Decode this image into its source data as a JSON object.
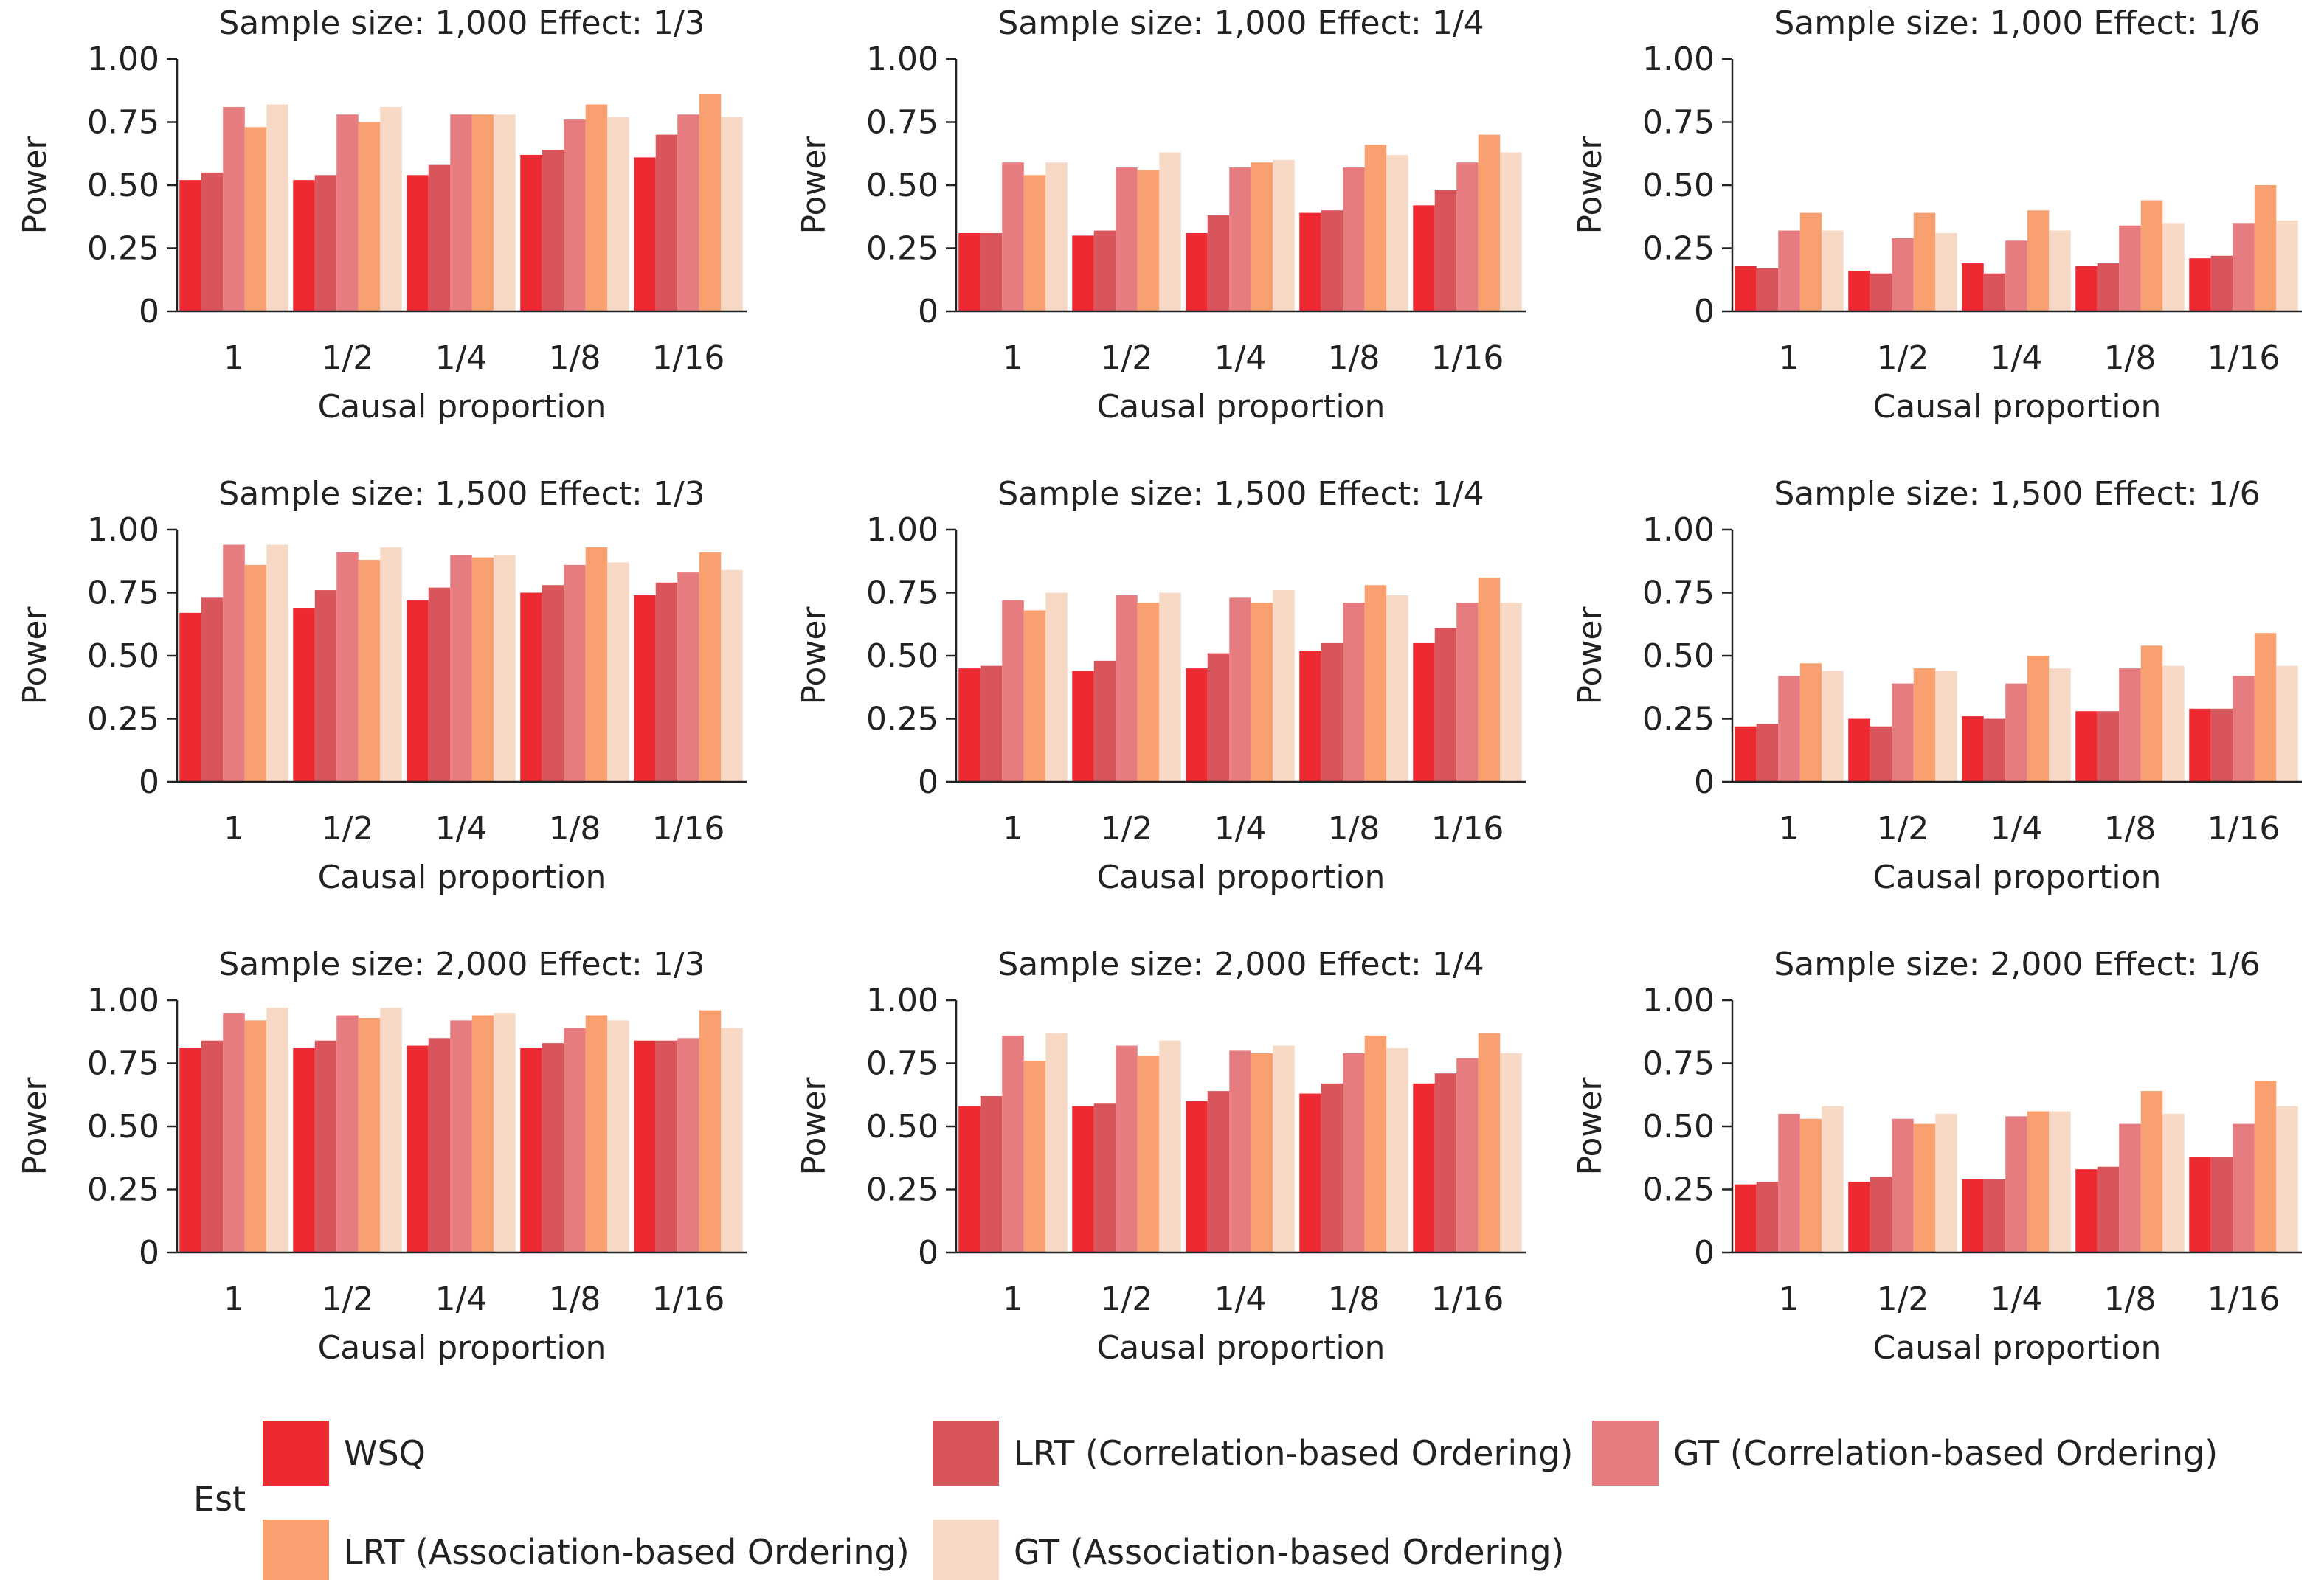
{
  "legend": {
    "title": "Est",
    "entries": [
      {
        "name": "WSQ",
        "color": "#ED2A32"
      },
      {
        "name": "LRT (Correlation-based Ordering)",
        "color": "#D9555C"
      },
      {
        "name": "GT (Correlation-based Ordering)",
        "color": "#E67C7F"
      },
      {
        "name": "LRT (Association-based Ordering)",
        "color": "#F8A06F"
      },
      {
        "name": "GT (Association-based Ordering)",
        "color": "#F8D9C6"
      }
    ]
  },
  "chart_data": [
    {
      "type": "bar",
      "title": "Sample size: 1,000 Effect: 1/3",
      "xlabel": "Causal proportion",
      "ylabel": "Power",
      "categories": [
        "1",
        "1/2",
        "1/4",
        "1/8",
        "1/16"
      ],
      "ylim": [
        0,
        1
      ],
      "yticks": [
        "0",
        "0.25",
        "0.50",
        "0.75",
        "1.00"
      ],
      "series": [
        {
          "name": "WSQ",
          "values": [
            0.52,
            0.52,
            0.54,
            0.62,
            0.61
          ]
        },
        {
          "name": "LRT (Correlation-based Ordering)",
          "values": [
            0.55,
            0.54,
            0.58,
            0.64,
            0.7
          ]
        },
        {
          "name": "GT (Correlation-based Ordering)",
          "values": [
            0.81,
            0.78,
            0.78,
            0.76,
            0.78
          ]
        },
        {
          "name": "LRT (Association-based Ordering)",
          "values": [
            0.73,
            0.75,
            0.78,
            0.82,
            0.86
          ]
        },
        {
          "name": "GT (Association-based Ordering)",
          "values": [
            0.82,
            0.81,
            0.78,
            0.77,
            0.77
          ]
        }
      ]
    },
    {
      "type": "bar",
      "title": "Sample size: 1,000 Effect: 1/4",
      "xlabel": "Causal proportion",
      "ylabel": "Power",
      "categories": [
        "1",
        "1/2",
        "1/4",
        "1/8",
        "1/16"
      ],
      "ylim": [
        0,
        1
      ],
      "yticks": [
        "0",
        "0.25",
        "0.50",
        "0.75",
        "1.00"
      ],
      "series": [
        {
          "name": "WSQ",
          "values": [
            0.31,
            0.3,
            0.31,
            0.39,
            0.42
          ]
        },
        {
          "name": "LRT (Correlation-based Ordering)",
          "values": [
            0.31,
            0.32,
            0.38,
            0.4,
            0.48
          ]
        },
        {
          "name": "GT (Correlation-based Ordering)",
          "values": [
            0.59,
            0.57,
            0.57,
            0.57,
            0.59
          ]
        },
        {
          "name": "LRT (Association-based Ordering)",
          "values": [
            0.54,
            0.56,
            0.59,
            0.66,
            0.7
          ]
        },
        {
          "name": "GT (Association-based Ordering)",
          "values": [
            0.59,
            0.63,
            0.6,
            0.62,
            0.63
          ]
        }
      ]
    },
    {
      "type": "bar",
      "title": "Sample size: 1,000 Effect: 1/6",
      "xlabel": "Causal proportion",
      "ylabel": "Power",
      "categories": [
        "1",
        "1/2",
        "1/4",
        "1/8",
        "1/16"
      ],
      "ylim": [
        0,
        1
      ],
      "yticks": [
        "0",
        "0.25",
        "0.50",
        "0.75",
        "1.00"
      ],
      "series": [
        {
          "name": "WSQ",
          "values": [
            0.18,
            0.16,
            0.19,
            0.18,
            0.21
          ]
        },
        {
          "name": "LRT (Correlation-based Ordering)",
          "values": [
            0.17,
            0.15,
            0.15,
            0.19,
            0.22
          ]
        },
        {
          "name": "GT (Correlation-based Ordering)",
          "values": [
            0.32,
            0.29,
            0.28,
            0.34,
            0.35
          ]
        },
        {
          "name": "LRT (Association-based Ordering)",
          "values": [
            0.39,
            0.39,
            0.4,
            0.44,
            0.5
          ]
        },
        {
          "name": "GT (Association-based Ordering)",
          "values": [
            0.32,
            0.31,
            0.32,
            0.35,
            0.36
          ]
        }
      ]
    },
    {
      "type": "bar",
      "title": "Sample size: 1,500 Effect: 1/3",
      "xlabel": "Causal proportion",
      "ylabel": "Power",
      "categories": [
        "1",
        "1/2",
        "1/4",
        "1/8",
        "1/16"
      ],
      "ylim": [
        0,
        1
      ],
      "yticks": [
        "0",
        "0.25",
        "0.50",
        "0.75",
        "1.00"
      ],
      "series": [
        {
          "name": "WSQ",
          "values": [
            0.67,
            0.69,
            0.72,
            0.75,
            0.74
          ]
        },
        {
          "name": "LRT (Correlation-based Ordering)",
          "values": [
            0.73,
            0.76,
            0.77,
            0.78,
            0.79
          ]
        },
        {
          "name": "GT (Correlation-based Ordering)",
          "values": [
            0.94,
            0.91,
            0.9,
            0.86,
            0.83
          ]
        },
        {
          "name": "LRT (Association-based Ordering)",
          "values": [
            0.86,
            0.88,
            0.89,
            0.93,
            0.91
          ]
        },
        {
          "name": "GT (Association-based Ordering)",
          "values": [
            0.94,
            0.93,
            0.9,
            0.87,
            0.84
          ]
        }
      ]
    },
    {
      "type": "bar",
      "title": "Sample size: 1,500 Effect: 1/4",
      "xlabel": "Causal proportion",
      "ylabel": "Power",
      "categories": [
        "1",
        "1/2",
        "1/4",
        "1/8",
        "1/16"
      ],
      "ylim": [
        0,
        1
      ],
      "yticks": [
        "0",
        "0.25",
        "0.50",
        "0.75",
        "1.00"
      ],
      "series": [
        {
          "name": "WSQ",
          "values": [
            0.45,
            0.44,
            0.45,
            0.52,
            0.55
          ]
        },
        {
          "name": "LRT (Correlation-based Ordering)",
          "values": [
            0.46,
            0.48,
            0.51,
            0.55,
            0.61
          ]
        },
        {
          "name": "GT (Correlation-based Ordering)",
          "values": [
            0.72,
            0.74,
            0.73,
            0.71,
            0.71
          ]
        },
        {
          "name": "LRT (Association-based Ordering)",
          "values": [
            0.68,
            0.71,
            0.71,
            0.78,
            0.81
          ]
        },
        {
          "name": "GT (Association-based Ordering)",
          "values": [
            0.75,
            0.75,
            0.76,
            0.74,
            0.71
          ]
        }
      ]
    },
    {
      "type": "bar",
      "title": "Sample size: 1,500 Effect: 1/6",
      "xlabel": "Causal proportion",
      "ylabel": "Power",
      "categories": [
        "1",
        "1/2",
        "1/4",
        "1/8",
        "1/16"
      ],
      "ylim": [
        0,
        1
      ],
      "yticks": [
        "0",
        "0.25",
        "0.50",
        "0.75",
        "1.00"
      ],
      "series": [
        {
          "name": "WSQ",
          "values": [
            0.22,
            0.25,
            0.26,
            0.28,
            0.29
          ]
        },
        {
          "name": "LRT (Correlation-based Ordering)",
          "values": [
            0.23,
            0.22,
            0.25,
            0.28,
            0.29
          ]
        },
        {
          "name": "GT (Correlation-based Ordering)",
          "values": [
            0.42,
            0.39,
            0.39,
            0.45,
            0.42
          ]
        },
        {
          "name": "LRT (Association-based Ordering)",
          "values": [
            0.47,
            0.45,
            0.5,
            0.54,
            0.59
          ]
        },
        {
          "name": "GT (Association-based Ordering)",
          "values": [
            0.44,
            0.44,
            0.45,
            0.46,
            0.46
          ]
        }
      ]
    },
    {
      "type": "bar",
      "title": "Sample size: 2,000 Effect: 1/3",
      "xlabel": "Causal proportion",
      "ylabel": "Power",
      "categories": [
        "1",
        "1/2",
        "1/4",
        "1/8",
        "1/16"
      ],
      "ylim": [
        0,
        1
      ],
      "yticks": [
        "0",
        "0.25",
        "0.50",
        "0.75",
        "1.00"
      ],
      "series": [
        {
          "name": "WSQ",
          "values": [
            0.81,
            0.81,
            0.82,
            0.81,
            0.84
          ]
        },
        {
          "name": "LRT (Correlation-based Ordering)",
          "values": [
            0.84,
            0.84,
            0.85,
            0.83,
            0.84
          ]
        },
        {
          "name": "GT (Correlation-based Ordering)",
          "values": [
            0.95,
            0.94,
            0.92,
            0.89,
            0.85
          ]
        },
        {
          "name": "LRT (Association-based Ordering)",
          "values": [
            0.92,
            0.93,
            0.94,
            0.94,
            0.96
          ]
        },
        {
          "name": "GT (Association-based Ordering)",
          "values": [
            0.97,
            0.97,
            0.95,
            0.92,
            0.89
          ]
        }
      ]
    },
    {
      "type": "bar",
      "title": "Sample size: 2,000 Effect: 1/4",
      "xlabel": "Causal proportion",
      "ylabel": "Power",
      "categories": [
        "1",
        "1/2",
        "1/4",
        "1/8",
        "1/16"
      ],
      "ylim": [
        0,
        1
      ],
      "yticks": [
        "0",
        "0.25",
        "0.50",
        "0.75",
        "1.00"
      ],
      "series": [
        {
          "name": "WSQ",
          "values": [
            0.58,
            0.58,
            0.6,
            0.63,
            0.67
          ]
        },
        {
          "name": "LRT (Correlation-based Ordering)",
          "values": [
            0.62,
            0.59,
            0.64,
            0.67,
            0.71
          ]
        },
        {
          "name": "GT (Correlation-based Ordering)",
          "values": [
            0.86,
            0.82,
            0.8,
            0.79,
            0.77
          ]
        },
        {
          "name": "LRT (Association-based Ordering)",
          "values": [
            0.76,
            0.78,
            0.79,
            0.86,
            0.87
          ]
        },
        {
          "name": "GT (Association-based Ordering)",
          "values": [
            0.87,
            0.84,
            0.82,
            0.81,
            0.79
          ]
        }
      ]
    },
    {
      "type": "bar",
      "title": "Sample size: 2,000 Effect: 1/6",
      "xlabel": "Causal proportion",
      "ylabel": "Power",
      "categories": [
        "1",
        "1/2",
        "1/4",
        "1/8",
        "1/16"
      ],
      "ylim": [
        0,
        1
      ],
      "yticks": [
        "0",
        "0.25",
        "0.50",
        "0.75",
        "1.00"
      ],
      "series": [
        {
          "name": "WSQ",
          "values": [
            0.27,
            0.28,
            0.29,
            0.33,
            0.38
          ]
        },
        {
          "name": "LRT (Correlation-based Ordering)",
          "values": [
            0.28,
            0.3,
            0.29,
            0.34,
            0.38
          ]
        },
        {
          "name": "GT (Correlation-based Ordering)",
          "values": [
            0.55,
            0.53,
            0.54,
            0.51,
            0.51
          ]
        },
        {
          "name": "LRT (Association-based Ordering)",
          "values": [
            0.53,
            0.51,
            0.56,
            0.64,
            0.68
          ]
        },
        {
          "name": "GT (Association-based Ordering)",
          "values": [
            0.58,
            0.55,
            0.56,
            0.55,
            0.58
          ]
        }
      ]
    }
  ]
}
